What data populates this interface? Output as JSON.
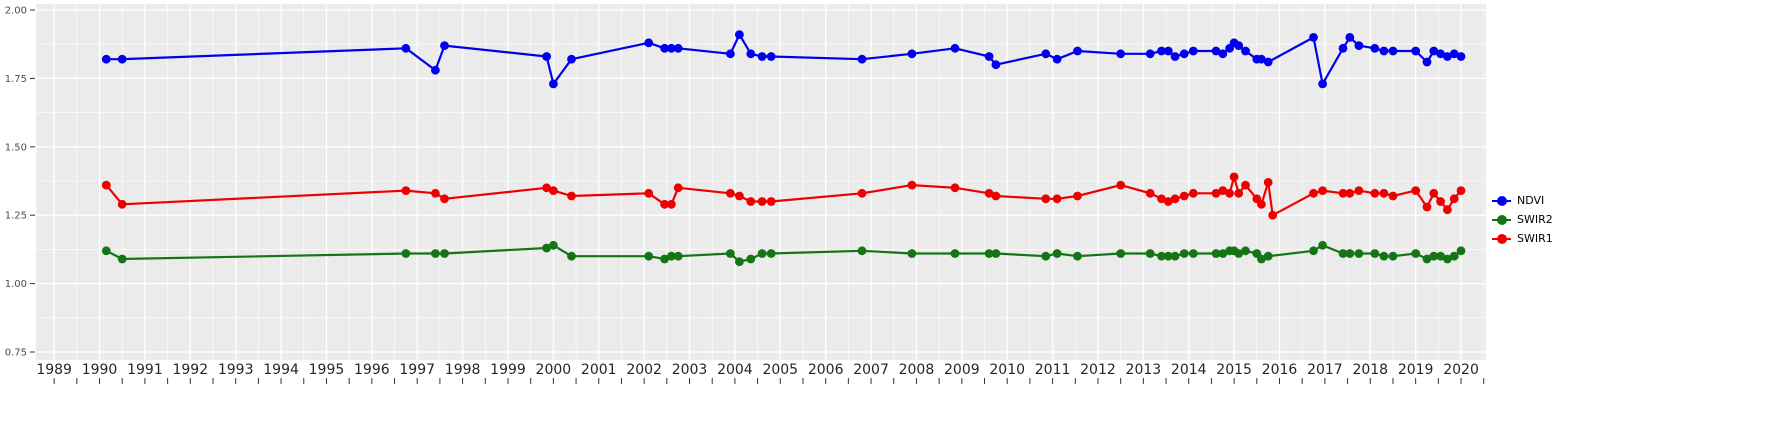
{
  "chart_data": {
    "type": "line",
    "title": "",
    "xlabel": "",
    "ylabel": "",
    "xlim": [
      1988.6,
      2020.55
    ],
    "ylim": [
      0.75,
      2.0
    ],
    "x_ticks": [
      1989,
      1990,
      1991,
      1992,
      1993,
      1994,
      1995,
      1996,
      1997,
      1998,
      1999,
      2000,
      2001,
      2002,
      2003,
      2004,
      2005,
      2006,
      2007,
      2008,
      2009,
      2010,
      2011,
      2012,
      2013,
      2014,
      2015,
      2016,
      2017,
      2018,
      2019,
      2020
    ],
    "y_ticks": [
      0.75,
      1.0,
      1.25,
      1.5,
      1.75,
      2.0
    ],
    "y_tick_labels": [
      "0.75",
      "1.00",
      "1.25",
      "1.50",
      "1.75",
      "2.00"
    ],
    "grid": true,
    "legend_position": "right",
    "panel_color": "#EBEBEB",
    "grid_color": "#FFFFFF",
    "series": [
      {
        "name": "NDVI",
        "color": "#0000EE",
        "x": [
          1990.15,
          1990.5,
          1996.75,
          1997.4,
          1997.6,
          1999.85,
          2000.0,
          2000.4,
          2002.1,
          2002.45,
          2002.6,
          2002.75,
          2003.9,
          2004.1,
          2004.35,
          2004.6,
          2004.8,
          2006.8,
          2007.9,
          2008.85,
          2009.6,
          2009.75,
          2010.85,
          2011.1,
          2011.55,
          2012.5,
          2013.15,
          2013.4,
          2013.55,
          2013.7,
          2013.9,
          2014.1,
          2014.6,
          2014.75,
          2014.9,
          2015.0,
          2015.1,
          2015.25,
          2015.5,
          2015.6,
          2015.75,
          2016.75,
          2016.95,
          2017.4,
          2017.55,
          2017.75,
          2018.1,
          2018.3,
          2018.5,
          2019.0,
          2019.25,
          2019.4,
          2019.55,
          2019.7,
          2019.85,
          2020.0
        ],
        "y": [
          1.82,
          1.82,
          1.86,
          1.78,
          1.87,
          1.83,
          1.73,
          1.82,
          1.88,
          1.86,
          1.86,
          1.86,
          1.84,
          1.91,
          1.84,
          1.83,
          1.83,
          1.82,
          1.84,
          1.86,
          1.83,
          1.8,
          1.84,
          1.82,
          1.85,
          1.84,
          1.84,
          1.85,
          1.85,
          1.83,
          1.84,
          1.85,
          1.85,
          1.84,
          1.86,
          1.88,
          1.87,
          1.85,
          1.82,
          1.82,
          1.81,
          1.9,
          1.73,
          1.86,
          1.9,
          1.87,
          1.86,
          1.85,
          1.85,
          1.85,
          1.81,
          1.85,
          1.84,
          1.83,
          1.84,
          1.83
        ]
      },
      {
        "name": "SWIR2",
        "color": "#157515",
        "x": [
          1990.15,
          1990.5,
          1996.75,
          1997.4,
          1997.6,
          1999.85,
          2000.0,
          2000.4,
          2002.1,
          2002.45,
          2002.6,
          2002.75,
          2003.9,
          2004.1,
          2004.35,
          2004.6,
          2004.8,
          2006.8,
          2007.9,
          2008.85,
          2009.6,
          2009.75,
          2010.85,
          2011.1,
          2011.55,
          2012.5,
          2013.15,
          2013.4,
          2013.55,
          2013.7,
          2013.9,
          2014.1,
          2014.6,
          2014.75,
          2014.9,
          2015.0,
          2015.1,
          2015.25,
          2015.5,
          2015.6,
          2015.75,
          2016.75,
          2016.95,
          2017.4,
          2017.55,
          2017.75,
          2018.1,
          2018.3,
          2018.5,
          2019.0,
          2019.25,
          2019.4,
          2019.55,
          2019.7,
          2019.85,
          2020.0
        ],
        "y": [
          1.12,
          1.09,
          1.11,
          1.11,
          1.11,
          1.13,
          1.14,
          1.1,
          1.1,
          1.09,
          1.1,
          1.1,
          1.11,
          1.08,
          1.09,
          1.11,
          1.11,
          1.12,
          1.11,
          1.11,
          1.11,
          1.11,
          1.1,
          1.11,
          1.1,
          1.11,
          1.11,
          1.1,
          1.1,
          1.1,
          1.11,
          1.11,
          1.11,
          1.11,
          1.12,
          1.12,
          1.11,
          1.12,
          1.11,
          1.09,
          1.1,
          1.12,
          1.14,
          1.11,
          1.11,
          1.11,
          1.11,
          1.1,
          1.1,
          1.11,
          1.09,
          1.1,
          1.1,
          1.09,
          1.1,
          1.12
        ]
      },
      {
        "name": "SWIR1",
        "color": "#EE0000",
        "x": [
          1990.15,
          1990.5,
          1996.75,
          1997.4,
          1997.6,
          1999.85,
          2000.0,
          2000.4,
          2002.1,
          2002.45,
          2002.6,
          2002.75,
          2003.9,
          2004.1,
          2004.35,
          2004.6,
          2004.8,
          2006.8,
          2007.9,
          2008.85,
          2009.6,
          2009.75,
          2010.85,
          2011.1,
          2011.55,
          2012.5,
          2013.15,
          2013.4,
          2013.55,
          2013.7,
          2013.9,
          2014.1,
          2014.6,
          2014.75,
          2014.9,
          2015.0,
          2015.1,
          2015.25,
          2015.5,
          2015.6,
          2015.75,
          2015.85,
          2016.75,
          2016.95,
          2017.4,
          2017.55,
          2017.75,
          2018.1,
          2018.3,
          2018.5,
          2019.0,
          2019.25,
          2019.4,
          2019.55,
          2019.7,
          2019.85,
          2020.0
        ],
        "y": [
          1.36,
          1.29,
          1.34,
          1.33,
          1.31,
          1.35,
          1.34,
          1.32,
          1.33,
          1.29,
          1.29,
          1.35,
          1.33,
          1.32,
          1.3,
          1.3,
          1.3,
          1.33,
          1.36,
          1.35,
          1.33,
          1.32,
          1.31,
          1.31,
          1.32,
          1.36,
          1.33,
          1.31,
          1.3,
          1.31,
          1.32,
          1.33,
          1.33,
          1.34,
          1.33,
          1.39,
          1.33,
          1.36,
          1.31,
          1.29,
          1.37,
          1.25,
          1.33,
          1.34,
          1.33,
          1.33,
          1.34,
          1.33,
          1.33,
          1.32,
          1.34,
          1.28,
          1.33,
          1.3,
          1.27,
          1.31,
          1.34
        ]
      }
    ],
    "legend": {
      "items": [
        "NDVI",
        "SWIR2",
        "SWIR1"
      ]
    }
  }
}
